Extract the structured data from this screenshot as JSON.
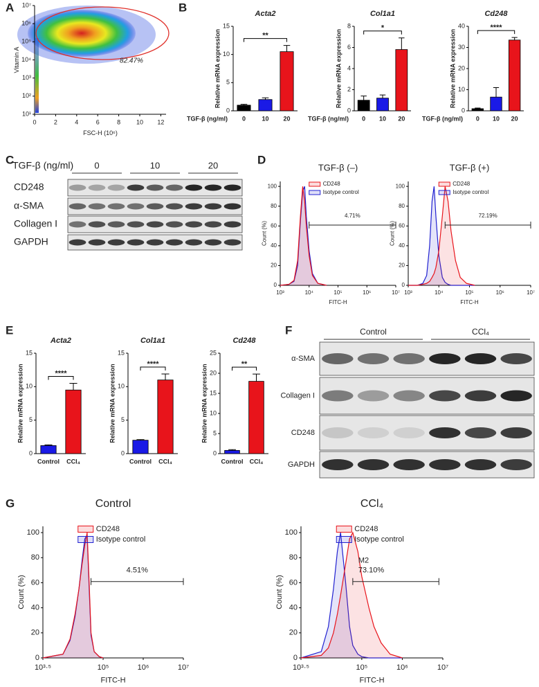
{
  "panel_labels": [
    "A",
    "B",
    "C",
    "D",
    "E",
    "F",
    "G"
  ],
  "chart_data": [
    {
      "type": "density",
      "x_label": "FSC-H (10⁶)",
      "y_label": "Vitamin A",
      "xlim": [
        0,
        12.5
      ],
      "xticks": [
        0,
        2,
        4,
        6,
        8,
        10,
        12
      ],
      "log_y": true,
      "ylim": [
        10,
        10000000
      ],
      "yticks": [
        {
          "value": 10,
          "label": "10¹"
        },
        {
          "value": 100,
          "label": "10²"
        },
        {
          "value": 1000,
          "label": "10³"
        },
        {
          "value": 10000,
          "label": "10⁴"
        },
        {
          "value": 100000,
          "label": "10⁵"
        },
        {
          "value": 1000000,
          "label": "10⁶"
        },
        {
          "value": 10000000,
          "label": "10⁷"
        }
      ],
      "annotations": [
        "82.47%"
      ]
    },
    {
      "type": "bar",
      "title": "Acta2",
      "y_label": "Relative mRNA expression",
      "x_label": "TGF-β (ng/ml)",
      "categories": [
        "0",
        "10",
        "20"
      ],
      "values": [
        1,
        2,
        10.5
      ],
      "errors": [
        0.15,
        0.3,
        1.1
      ],
      "colors": [
        "#000000",
        "#1a1ae6",
        "#e8141b"
      ],
      "ylim": [
        0,
        15
      ],
      "yticks": [
        0,
        5,
        10,
        15
      ],
      "significance": "**"
    },
    {
      "type": "bar",
      "title": "Col1a1",
      "y_label": "Relative mRNA expression",
      "x_label": "TGF-β (ng/ml)",
      "categories": [
        "0",
        "10",
        "20"
      ],
      "values": [
        1,
        1.2,
        5.8
      ],
      "errors": [
        0.4,
        0.3,
        1.1
      ],
      "colors": [
        "#000000",
        "#1a1ae6",
        "#e8141b"
      ],
      "ylim": [
        0,
        8
      ],
      "yticks": [
        0,
        2,
        4,
        6,
        8
      ],
      "significance": "*"
    },
    {
      "type": "bar",
      "title": "Cd248",
      "y_label": "Relative mRNA expression",
      "x_label": "TGF-β (ng/ml)",
      "categories": [
        "0",
        "10",
        "20"
      ],
      "values": [
        1,
        6.5,
        33.5
      ],
      "errors": [
        0.3,
        4.5,
        1.2
      ],
      "colors": [
        "#000000",
        "#1a1ae6",
        "#e8141b"
      ],
      "ylim": [
        0,
        40
      ],
      "yticks": [
        0,
        10,
        20,
        30,
        40
      ],
      "significance": "****"
    },
    {
      "type": "line",
      "title": "TGF-β (–)",
      "x_label": "FITC-H",
      "y_label": "Count (%)",
      "log_x": true,
      "x": [
        1000,
        2000,
        3000,
        4000,
        5000,
        6000,
        7000,
        8000,
        10000,
        13000,
        20000,
        40000
      ],
      "series": [
        {
          "name": "CD248",
          "color": "#e8141b",
          "values": [
            0,
            1,
            5,
            25,
            70,
            100,
            85,
            60,
            30,
            10,
            2,
            0
          ]
        },
        {
          "name": "Isotype control",
          "color": "#2020d0",
          "values": [
            0,
            1,
            4,
            20,
            65,
            95,
            100,
            70,
            35,
            12,
            2,
            0
          ]
        }
      ],
      "xlim": [
        1000,
        10000000
      ],
      "xticks": [
        {
          "value": 1000,
          "label": "10³"
        },
        {
          "value": 10000,
          "label": "10⁴"
        },
        {
          "value": 100000,
          "label": "10⁵"
        },
        {
          "value": 1000000,
          "label": "10⁶"
        },
        {
          "value": 10000000,
          "label": "10⁷"
        }
      ],
      "ylim": [
        0,
        105
      ],
      "yticks": [
        0,
        20,
        40,
        60,
        80,
        100
      ],
      "gate": [
        10000,
        10000000
      ],
      "annotations": [
        "4.71%"
      ]
    },
    {
      "type": "line",
      "title": "TGF-β (+)",
      "x_label": "FITC-H",
      "y_label": "Count (%)",
      "log_x": true,
      "x": [
        1000,
        2000,
        3000,
        4000,
        5000,
        6000,
        7000,
        8000,
        10000,
        13000,
        16000,
        20000,
        25000,
        35000,
        50000,
        80000,
        150000
      ],
      "series": [
        {
          "name": "CD248",
          "color": "#e8141b",
          "values": [
            0,
            0,
            1,
            2,
            4,
            8,
            12,
            18,
            35,
            70,
            100,
            85,
            55,
            25,
            8,
            2,
            0
          ]
        },
        {
          "name": "Isotype control",
          "color": "#2020d0",
          "values": [
            0,
            0,
            2,
            10,
            40,
            85,
            100,
            70,
            30,
            8,
            3,
            1,
            0,
            0,
            0,
            0,
            0
          ]
        }
      ],
      "xlim": [
        1000,
        10000000
      ],
      "xticks": [
        {
          "value": 1000,
          "label": "10³"
        },
        {
          "value": 10000,
          "label": "10⁴"
        },
        {
          "value": 100000,
          "label": "10⁵"
        },
        {
          "value": 1000000,
          "label": "10⁶"
        },
        {
          "value": 10000000,
          "label": "10⁷"
        }
      ],
      "ylim": [
        0,
        105
      ],
      "yticks": [
        0,
        20,
        40,
        60,
        80,
        100
      ],
      "gate": [
        16000,
        10000000
      ],
      "annotations": [
        "72.19%"
      ]
    },
    {
      "type": "bar",
      "title": "Acta2",
      "y_label": "Relative mRNA expression",
      "categories": [
        "Control",
        "CCl₄"
      ],
      "values": [
        1.2,
        9.5
      ],
      "errors": [
        0.1,
        1
      ],
      "colors": [
        "#1a1ae6",
        "#e8141b"
      ],
      "ylim": [
        0,
        15
      ],
      "yticks": [
        0,
        5,
        10,
        15
      ],
      "significance": "****"
    },
    {
      "type": "bar",
      "title": "Col1a1",
      "y_label": "Relative mRNA expression",
      "categories": [
        "Control",
        "CCl₄"
      ],
      "values": [
        2,
        11
      ],
      "errors": [
        0.1,
        0.9
      ],
      "colors": [
        "#1a1ae6",
        "#e8141b"
      ],
      "ylim": [
        0,
        15
      ],
      "yticks": [
        0,
        5,
        10,
        15
      ],
      "significance": "****"
    },
    {
      "type": "bar",
      "title": "Cd248",
      "y_label": "Relative mRNA expression",
      "categories": [
        "Control",
        "CCl₄"
      ],
      "values": [
        0.8,
        18
      ],
      "errors": [
        0.2,
        1.8
      ],
      "colors": [
        "#1a1ae6",
        "#e8141b"
      ],
      "ylim": [
        0,
        25
      ],
      "yticks": [
        0,
        5,
        10,
        15,
        20,
        25
      ],
      "significance": "**"
    },
    {
      "type": "line",
      "title": "Control",
      "x_label": "FITC-H",
      "y_label": "Count (%)",
      "log_x": true,
      "x": [
        3162.28,
        10000,
        15000,
        20000,
        25000,
        30000,
        35000,
        40000,
        45000,
        50000,
        60000,
        80000,
        100000
      ],
      "series": [
        {
          "name": "CD248",
          "color": "#e8141b",
          "values": [
            0,
            3,
            15,
            35,
            55,
            75,
            90,
            100,
            60,
            20,
            5,
            1,
            0
          ]
        },
        {
          "name": "Isotype control",
          "color": "#2020d0",
          "values": [
            0,
            3,
            14,
            33,
            55,
            78,
            95,
            98,
            55,
            18,
            5,
            1,
            0
          ]
        }
      ],
      "xlim": [
        3162.28,
        10000000
      ],
      "xticks": [
        {
          "value": 3162.28,
          "label": "10³·⁵"
        },
        {
          "value": 100000,
          "label": "10⁵"
        },
        {
          "value": 1000000,
          "label": "10⁶"
        },
        {
          "value": 10000000,
          "label": "10⁷"
        }
      ],
      "ylim": [
        0,
        105
      ],
      "yticks": [
        0,
        20,
        40,
        60,
        80,
        100
      ],
      "gate": [
        50000,
        10000000
      ],
      "annotations": [
        "4.51%"
      ]
    },
    {
      "type": "line",
      "title": "CCl₄",
      "x_label": "FITC-H",
      "y_label": "Count (%)",
      "log_x": true,
      "x": [
        3162.28,
        10000,
        15000,
        20000,
        25000,
        30000,
        40000,
        50000,
        60000,
        80000,
        100000,
        150000,
        200000,
        300000,
        500000,
        1000000
      ],
      "series": [
        {
          "name": "CD248",
          "color": "#e8141b",
          "values": [
            0,
            2,
            8,
            20,
            35,
            50,
            75,
            95,
            100,
            85,
            65,
            40,
            25,
            12,
            3,
            0
          ]
        },
        {
          "name": "Isotype control",
          "color": "#2020d0",
          "values": [
            0,
            5,
            25,
            55,
            85,
            100,
            60,
            25,
            10,
            3,
            1,
            0,
            0,
            0,
            0,
            0
          ]
        }
      ],
      "xlim": [
        3162.28,
        10000000
      ],
      "xticks": [
        {
          "value": 3162.28,
          "label": "10³·⁵"
        },
        {
          "value": 100000,
          "label": "10⁵"
        },
        {
          "value": 1000000,
          "label": "10⁶"
        },
        {
          "value": 10000000,
          "label": "10⁷"
        }
      ],
      "ylim": [
        0,
        105
      ],
      "yticks": [
        0,
        20,
        40,
        60,
        80,
        100
      ],
      "gate": [
        60000,
        8000000
      ],
      "annotations": [
        "M2",
        "73.10%"
      ]
    }
  ],
  "blots": [
    {
      "header": "TGF-β (ng/ml)",
      "groups": [
        "0",
        "10",
        "20"
      ],
      "rows": [
        {
          "label": "CD248",
          "bands": [
            0.35,
            0.3,
            0.3,
            0.8,
            0.65,
            0.6,
            0.9,
            0.9,
            0.9
          ]
        },
        {
          "label": "α-SMA",
          "bands": [
            0.6,
            0.55,
            0.55,
            0.55,
            0.65,
            0.7,
            0.8,
            0.8,
            0.85
          ]
        },
        {
          "label": "Collagen I",
          "bands": [
            0.55,
            0.7,
            0.65,
            0.7,
            0.75,
            0.7,
            0.75,
            0.75,
            0.8
          ]
        },
        {
          "label": "GAPDH",
          "bands": [
            0.8,
            0.8,
            0.8,
            0.8,
            0.8,
            0.8,
            0.8,
            0.8,
            0.8
          ]
        }
      ]
    },
    {
      "groups": [
        "Control",
        "CCl₄"
      ],
      "rows": [
        {
          "label": "α-SMA",
          "bands": [
            0.6,
            0.55,
            0.55,
            0.9,
            0.9,
            0.75
          ]
        },
        {
          "label": "Collagen I",
          "bands": [
            0.5,
            0.35,
            0.45,
            0.75,
            0.8,
            0.9
          ]
        },
        {
          "label": "CD248",
          "bands": [
            0.15,
            0.1,
            0.1,
            0.85,
            0.75,
            0.8
          ]
        },
        {
          "label": "GAPDH",
          "bands": [
            0.85,
            0.85,
            0.85,
            0.85,
            0.85,
            0.8
          ]
        }
      ]
    }
  ]
}
